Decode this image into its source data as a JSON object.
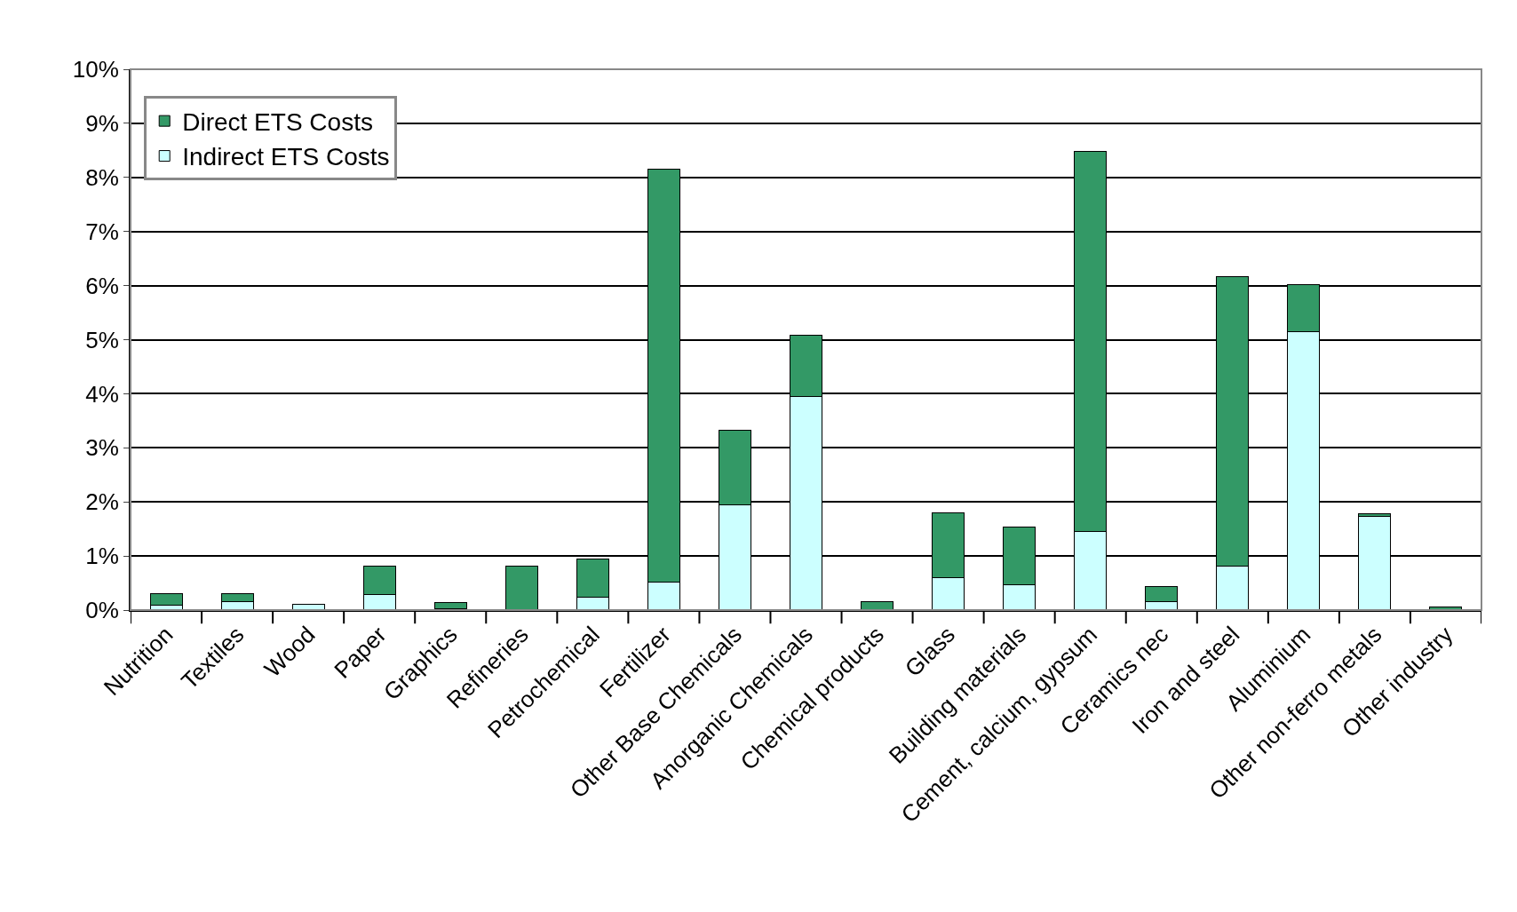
{
  "chart_data": {
    "type": "bar",
    "stacked": true,
    "categories": [
      "Nutrition",
      "Textiles",
      "Wood",
      "Paper",
      "Graphics",
      "Refineries",
      "Petrochemical",
      "Fertilizer",
      "Other Base Chemicals",
      "Anorganic Chemicals",
      "Chemical products",
      "Glass",
      "Building materials",
      "Cement, calcium, gypsum",
      "Ceramics nec",
      "Iron and steel",
      "Aluminium",
      "Other non-ferro metals",
      "Other industry"
    ],
    "series": [
      {
        "name": "Indirect ETS Costs",
        "color": "#ccffff",
        "values": [
          0.09,
          0.16,
          0.11,
          0.29,
          0.02,
          null,
          0.24,
          0.52,
          1.95,
          3.95,
          null,
          0.6,
          0.47,
          1.45,
          0.16,
          0.81,
          5.15,
          1.73,
          null
        ]
      },
      {
        "name": "Direct ETS Costs",
        "color": "#339966",
        "values": [
          0.21,
          0.15,
          null,
          0.53,
          0.12,
          0.81,
          0.71,
          7.63,
          1.38,
          1.13,
          0.16,
          1.2,
          1.06,
          7.03,
          0.27,
          5.36,
          0.87,
          0.05,
          0.06
        ]
      }
    ],
    "ylim": [
      0,
      10
    ],
    "yticks": [
      {
        "value": 0,
        "label": "0%"
      },
      {
        "value": 1,
        "label": "1%"
      },
      {
        "value": 2,
        "label": "2%"
      },
      {
        "value": 3,
        "label": "3%"
      },
      {
        "value": 4,
        "label": "4%"
      },
      {
        "value": 5,
        "label": "5%"
      },
      {
        "value": 6,
        "label": "6%"
      },
      {
        "value": 7,
        "label": "7%"
      },
      {
        "value": 8,
        "label": "8%"
      },
      {
        "value": 9,
        "label": "9%"
      },
      {
        "value": 10,
        "label": "10%"
      }
    ],
    "grid": "y",
    "legend": "top left"
  }
}
